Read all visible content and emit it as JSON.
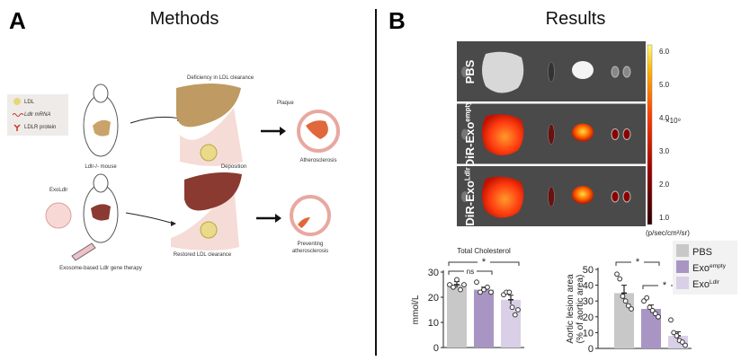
{
  "panels": {
    "a": {
      "letter": "A",
      "title": "Methods"
    },
    "b": {
      "letter": "B",
      "title": "Results"
    }
  },
  "methods": {
    "legend": [
      "LDL",
      "Ldlr mRNA",
      "LDLR protein"
    ],
    "mouse_label": "Ldlr-/- mouse",
    "exo_label": "ExoLdlr",
    "therapy_label": "Exosome-based Ldlr gene therapy",
    "deficiency_label": "Deficiency in LDL clearance",
    "deposition_label": "Deposition",
    "plaque_label": "Plaque",
    "athero_label": "Atherosclerosis",
    "restored_label": "Restored LDL clearance",
    "preventing_label_1": "Preventing",
    "preventing_label_2": "atherosclerosis"
  },
  "imaging": {
    "rows": [
      "PBS",
      "DiR-Exo",
      "DiR-Exo"
    ],
    "row_superscripts": [
      "",
      "empty",
      "Ldlr"
    ],
    "colorbar_ticks": [
      "1.0",
      "2.0",
      "3.0",
      "4.0",
      "5.0",
      "6.0"
    ],
    "colorbar_multiplier": "×10⁹",
    "colorbar_unit": "(p/sec/cm²/sr)"
  },
  "legend": {
    "items": [
      {
        "label": "PBS",
        "sup": "",
        "color": "#c8c8c8"
      },
      {
        "label": "Exo",
        "sup": "empty",
        "color": "#a995c4"
      },
      {
        "label": "Exo",
        "sup": "Ldlr",
        "color": "#d9cfe6"
      }
    ]
  },
  "chart_data": [
    {
      "type": "bar",
      "title": "Total Cholesterol",
      "ylabel": "mmol/L",
      "categories": [
        "PBS",
        "Exoempty",
        "ExoLdlr"
      ],
      "values": [
        25,
        23,
        19
      ],
      "errors": [
        1.2,
        1.0,
        1.8
      ],
      "points": [
        [
          25,
          24,
          27,
          23,
          25
        ],
        [
          26,
          22,
          23,
          24,
          22
        ],
        [
          21,
          22,
          22,
          16,
          13,
          15
        ]
      ],
      "ylim": [
        0,
        30
      ],
      "yticks": [
        "0",
        "10",
        "20",
        "30"
      ],
      "significance": [
        {
          "pair": [
            "PBS",
            "Exoempty"
          ],
          "label": "ns"
        },
        {
          "pair": [
            "PBS",
            "ExoLdlr"
          ],
          "label": "*"
        }
      ]
    },
    {
      "type": "bar",
      "title": "",
      "ylabel": "Aortic lesion area",
      "ylabel2": "(% of aortic area)",
      "categories": [
        "PBS",
        "Exoempty",
        "ExoLdlr"
      ],
      "values": [
        35,
        25,
        8
      ],
      "errors": [
        5,
        2.5,
        2.5
      ],
      "points": [
        [
          47,
          44,
          33,
          30,
          27,
          25
        ],
        [
          30,
          32,
          26,
          24,
          22,
          20
        ],
        [
          18,
          10,
          8,
          5,
          4,
          2
        ]
      ],
      "ylim": [
        0,
        50
      ],
      "yticks": [
        "0",
        "10",
        "20",
        "30",
        "40",
        "50"
      ],
      "significance": [
        {
          "pair": [
            "PBS",
            "Exoempty"
          ],
          "label": "*"
        },
        {
          "pair": [
            "Exoempty",
            "ExoLdlr"
          ],
          "label": "*"
        }
      ]
    }
  ]
}
